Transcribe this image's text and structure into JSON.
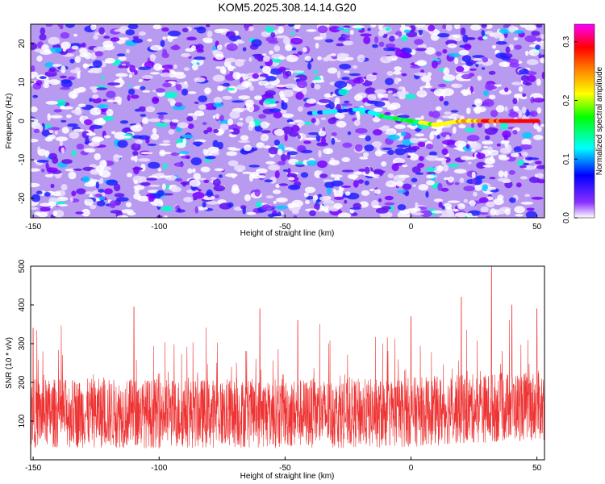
{
  "title": "KOM5.2025.308.14.14.G20",
  "chart_data": [
    {
      "type": "heatmap",
      "xlabel": "Height of straight line (km)",
      "ylabel": "Frequency (Hz)",
      "xlim": [
        -151,
        53
      ],
      "ylim": [
        -25,
        25
      ],
      "xticks": [
        "-150",
        "-100",
        "-50",
        "0",
        "50"
      ],
      "yticks": [
        "-20",
        "-10",
        "0",
        "10",
        "20"
      ],
      "colorbar": {
        "label": "Normalized spectral amplitude",
        "range": [
          0.0,
          0.33
        ],
        "ticks": [
          "0.0",
          "0.1",
          "0.2",
          "0.3"
        ],
        "colors": [
          "#ffffff",
          "#7a00ff",
          "#0000ff",
          "#00ffff",
          "#00ff00",
          "#ffff00",
          "#ff8800",
          "#ff0000",
          "#ff00ff"
        ]
      },
      "ridge": {
        "description_points": [
          [
            -40,
            2
          ],
          [
            -20,
            3
          ],
          [
            -10,
            1
          ],
          [
            0,
            0
          ],
          [
            10,
            -1
          ],
          [
            20,
            0
          ],
          [
            30,
            0
          ],
          [
            40,
            0
          ],
          [
            50,
            0
          ]
        ],
        "peak_amplitude": 0.33
      }
    },
    {
      "type": "line",
      "xlabel": "Height of straight line (km)",
      "ylabel": "SNR (10 * v/v)",
      "xlim": [
        -151,
        53
      ],
      "ylim": [
        0,
        500
      ],
      "xticks": [
        "-150",
        "-100",
        "-50",
        "0",
        "50"
      ],
      "yticks": [
        "100",
        "200",
        "300",
        "400",
        "500"
      ],
      "line_color": "#ee3333",
      "baseline": 120,
      "notable_peaks": [
        [
          -150,
          340
        ],
        [
          -110,
          395
        ],
        [
          -60,
          390
        ],
        [
          -45,
          360
        ],
        [
          0,
          370
        ],
        [
          20,
          420
        ],
        [
          32,
          500
        ],
        [
          40,
          400
        ],
        [
          50,
          390
        ]
      ]
    }
  ]
}
